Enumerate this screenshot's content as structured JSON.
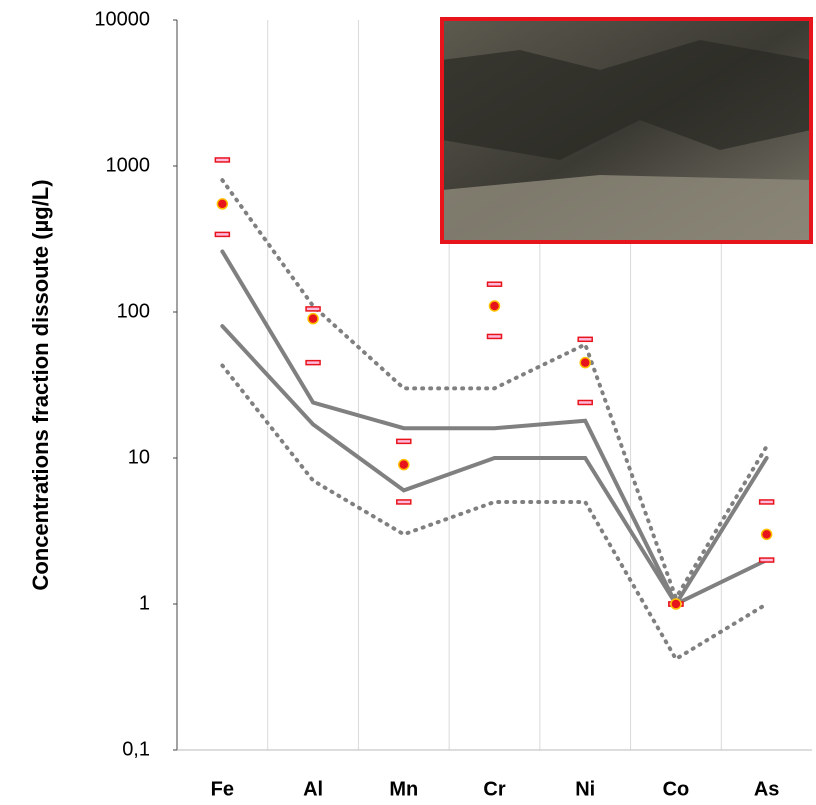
{
  "chart_data": {
    "type": "line",
    "log_y": true,
    "y_label": "Concentrations fraction dissoute  (µg/L)",
    "categories": [
      "Fe",
      "Al",
      "Mn",
      "Cr",
      "Ni",
      "Co",
      "As"
    ],
    "ylim": [
      0.1,
      10000
    ],
    "yticks": [
      {
        "value": 0.1,
        "label": "0,1"
      },
      1,
      10,
      100,
      1000,
      10000
    ],
    "series": [
      {
        "style": "dotted",
        "color": "#808080",
        "values": [
          800,
          110,
          30,
          30,
          60,
          1.1,
          12
        ]
      },
      {
        "style": "solid",
        "color": "#808080",
        "values": [
          260,
          24,
          16,
          16,
          18,
          1,
          10
        ]
      },
      {
        "style": "solid",
        "color": "#808080",
        "values": [
          80,
          17,
          6,
          10,
          10,
          1,
          2
        ]
      },
      {
        "style": "dotted",
        "color": "#808080",
        "values": [
          43,
          7,
          3,
          5,
          5,
          0.42,
          1
        ]
      },
      {
        "style": "dash-marker",
        "color": "#e8141b",
        "values": [
          1100,
          105,
          13,
          155,
          65,
          1,
          5
        ]
      },
      {
        "style": "dash-marker",
        "color": "#e8141b",
        "values": [
          340,
          45,
          5,
          68,
          24,
          1,
          2
        ]
      },
      {
        "style": "dot-marker",
        "color": "#e8141b",
        "values": [
          550,
          90,
          9,
          110,
          45,
          1,
          3
        ]
      }
    ]
  }
}
